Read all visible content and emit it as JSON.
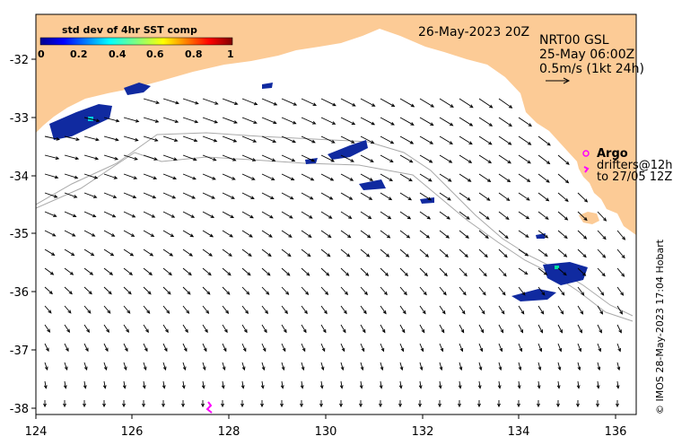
{
  "map": {
    "date_label": "26-May-2023 20Z",
    "product_label": "NRT00 GSL",
    "product_time": "25-May 06:00Z",
    "scale_label": "0.5m/s (1kt 24h)",
    "credit": "© IMOS 28-May-2023 17:04 Hobart",
    "argo_label": "Argo",
    "drifters_label_1": "drifters@12h",
    "drifters_label_2": "to 27/05 12Z",
    "colorbar_title": "std dev of 4hr SST comp",
    "colorbar_ticks": [
      "0",
      "0.2",
      "0.4",
      "0.6",
      "0.8",
      "1"
    ],
    "x_ticks": [
      "124",
      "126",
      "128",
      "130",
      "132",
      "134",
      "136"
    ],
    "y_ticks": [
      "-32",
      "-33",
      "-34",
      "-35",
      "-36",
      "-37",
      "-38"
    ],
    "colors": {
      "land": "#fccb96",
      "argo": "#ff00ff",
      "bathymetry": "#a9a9a9",
      "sst_patch": "#102aa0"
    }
  }
}
